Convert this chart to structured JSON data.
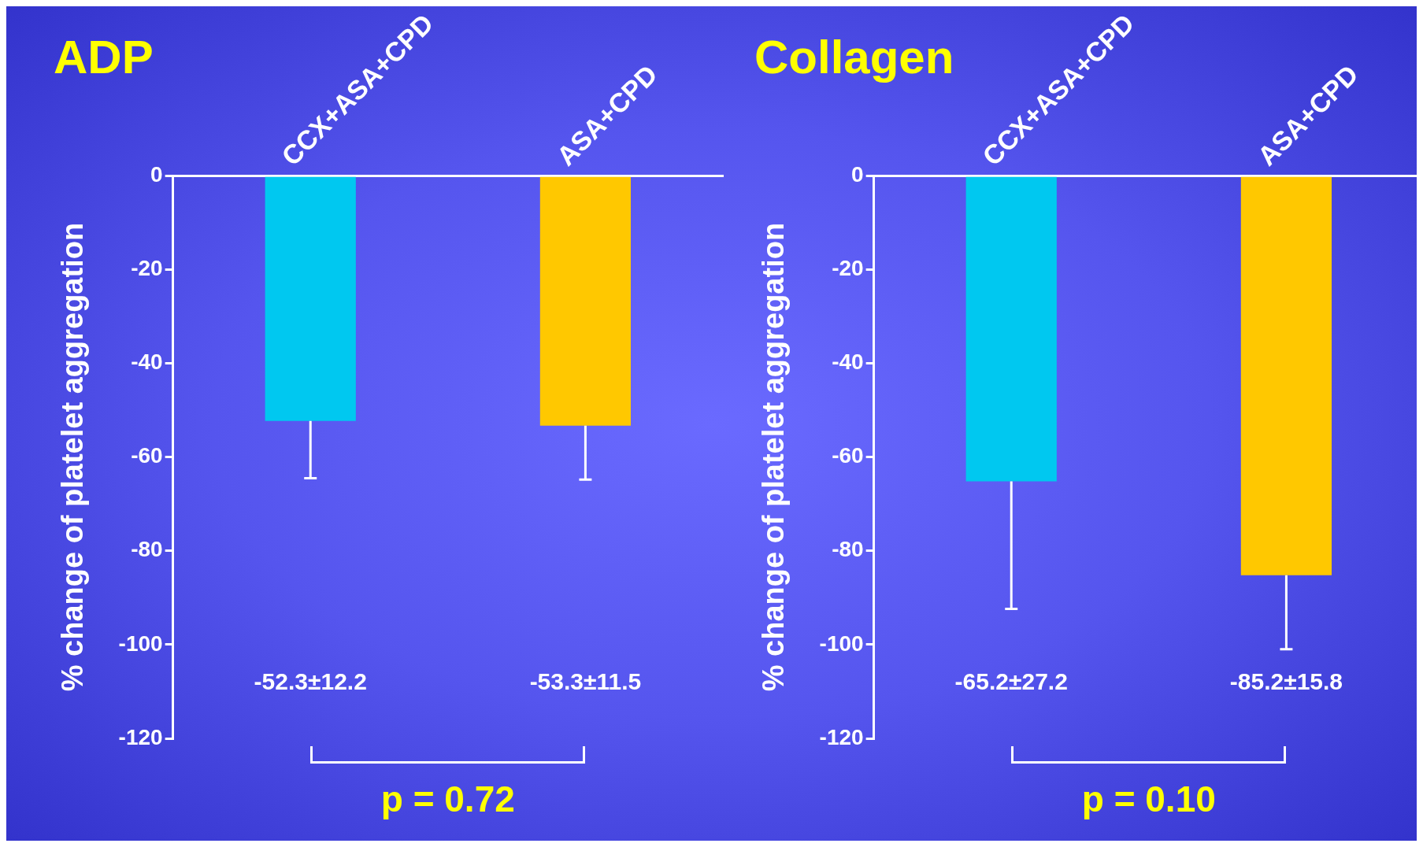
{
  "chart_data": [
    {
      "type": "bar",
      "title": "ADP",
      "ylabel": "% change of platelet aggregation",
      "categories": [
        "CCX+ASA+CPD",
        "ASA+CPD"
      ],
      "values": [
        -52.3,
        -53.3
      ],
      "colors": [
        "#00c8f0",
        "#ffc800"
      ],
      "errors": [
        [
          -64.5,
          -52.3
        ],
        [
          -64.8,
          -53.3
        ]
      ],
      "ylim": [
        -120,
        0
      ],
      "yticks": [
        0,
        -20,
        -40,
        -60,
        -80,
        -100,
        -120
      ],
      "grid": false,
      "legend": false,
      "annotations": [
        "-52.3±12.2",
        "-53.3±11.5",
        "p = 0.72"
      ]
    },
    {
      "type": "bar",
      "title": "Collagen",
      "ylabel": "% change of platelet aggregation",
      "categories": [
        "CCX+ASA+CPD",
        "ASA+CPD"
      ],
      "values": [
        -65.2,
        -85.2
      ],
      "colors": [
        "#00c8f0",
        "#ffc800"
      ],
      "errors": [
        [
          -92.4,
          -65.2
        ],
        [
          -101.0,
          -85.2
        ]
      ],
      "ylim": [
        -120,
        0
      ],
      "yticks": [
        0,
        -20,
        -40,
        -60,
        -80,
        -100,
        -120
      ],
      "grid": false,
      "legend": false,
      "annotations": [
        "-65.2±27.2",
        "-85.2±15.8",
        "p = 0.10"
      ]
    }
  ]
}
